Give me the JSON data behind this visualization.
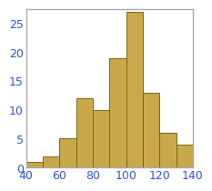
{
  "bin_edges": [
    40,
    50,
    60,
    70,
    80,
    90,
    100,
    110,
    120,
    130,
    140
  ],
  "counts": [
    1,
    2,
    5,
    12,
    10,
    19,
    27,
    13,
    6,
    4
  ],
  "bar_color": "#c9a84c",
  "bar_edgecolor": "#7a6a10",
  "xlim": [
    40,
    140
  ],
  "ylim": [
    0,
    27.5
  ],
  "xticks": [
    40,
    60,
    80,
    100,
    120,
    140
  ],
  "yticks": [
    0,
    5,
    10,
    15,
    20,
    25
  ],
  "tick_color": "#3355cc",
  "tick_labelsize": 9,
  "spine_color": "#aaaaaa",
  "spine_linewidth": 1.0,
  "background_color": "#ffffff",
  "figsize": [
    2.32,
    2.08
  ],
  "dpi": 100
}
